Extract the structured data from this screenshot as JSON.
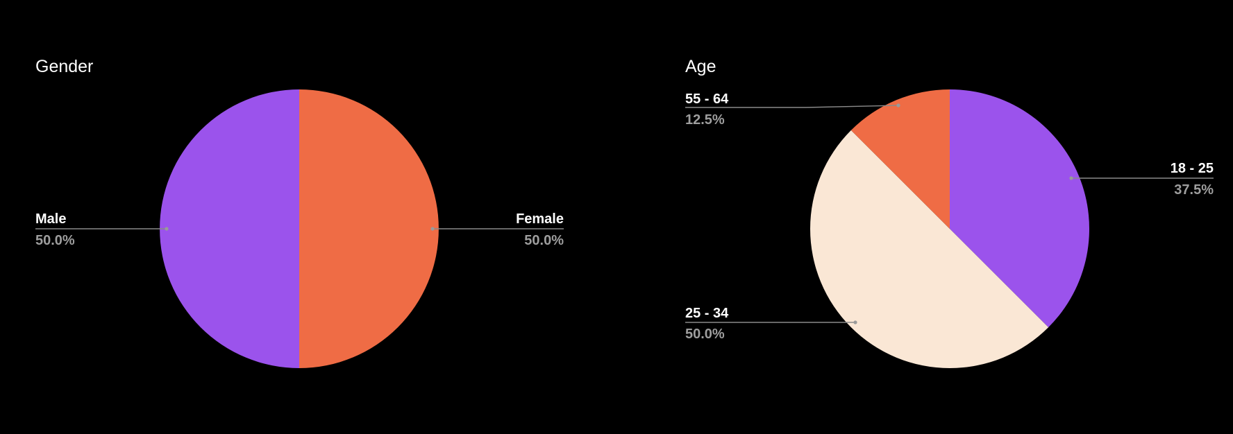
{
  "chart_data": [
    {
      "type": "pie",
      "title": "Gender",
      "legend": "none",
      "slices": [
        {
          "label": "Female",
          "value": 50.0,
          "display": "50.0%",
          "color": "#ef6c45"
        },
        {
          "label": "Male",
          "value": 50.0,
          "display": "50.0%",
          "color": "#9b53ec"
        }
      ]
    },
    {
      "type": "pie",
      "title": "Age",
      "legend": "none",
      "slices": [
        {
          "label": "18 - 25",
          "value": 37.5,
          "display": "37.5%",
          "color": "#9b53ec"
        },
        {
          "label": "25 - 34",
          "value": 50.0,
          "display": "50.0%",
          "color": "#fae7d5"
        },
        {
          "label": "55 - 64",
          "value": 12.5,
          "display": "12.5%",
          "color": "#ef6c45"
        }
      ]
    }
  ]
}
